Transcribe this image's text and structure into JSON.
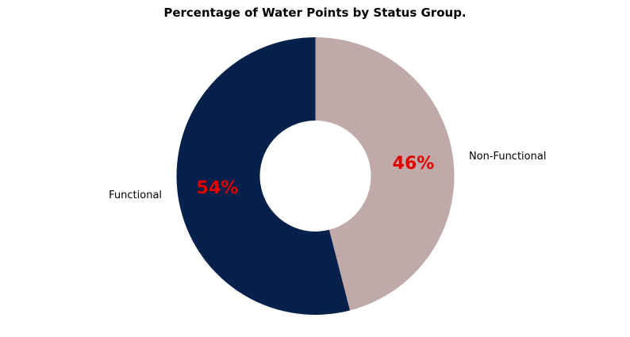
{
  "chart_data": {
    "type": "pie",
    "variant": "donut",
    "title": "Percentage of Water Points by Status Group.",
    "slices": [
      {
        "label": "Functional",
        "value": 54,
        "pct_label": "54%",
        "color": "#06204c"
      },
      {
        "label": "Non-Functional",
        "value": 46,
        "pct_label": "46%",
        "color": "#bfaaa9"
      }
    ],
    "start": "top",
    "direction": "clockwise from top for Non-Functional",
    "pct_label_color": "#e00000",
    "legend": "none"
  }
}
